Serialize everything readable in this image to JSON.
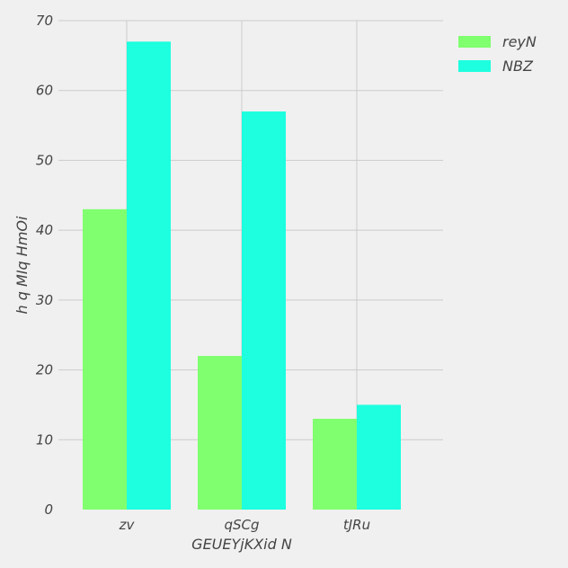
{
  "chart_data": {
    "type": "bar",
    "categories": [
      "zv",
      "qSCg",
      "tJRu"
    ],
    "series": [
      {
        "name": "reyN",
        "values": [
          43,
          22,
          13
        ],
        "color": "#80ff6f"
      },
      {
        "name": "NBZ",
        "values": [
          67,
          57,
          15
        ],
        "color": "#1dffdf"
      }
    ],
    "xlabel": "GEUEYjKXid N",
    "ylabel": "h q MIq HmOi",
    "ylim": [
      0,
      70
    ],
    "yticks": [
      0,
      10,
      20,
      30,
      40,
      50,
      60,
      70
    ],
    "grid": true,
    "legend": "top-right",
    "background": "#f0f0f0",
    "grid_color": "#cbcbcb"
  }
}
